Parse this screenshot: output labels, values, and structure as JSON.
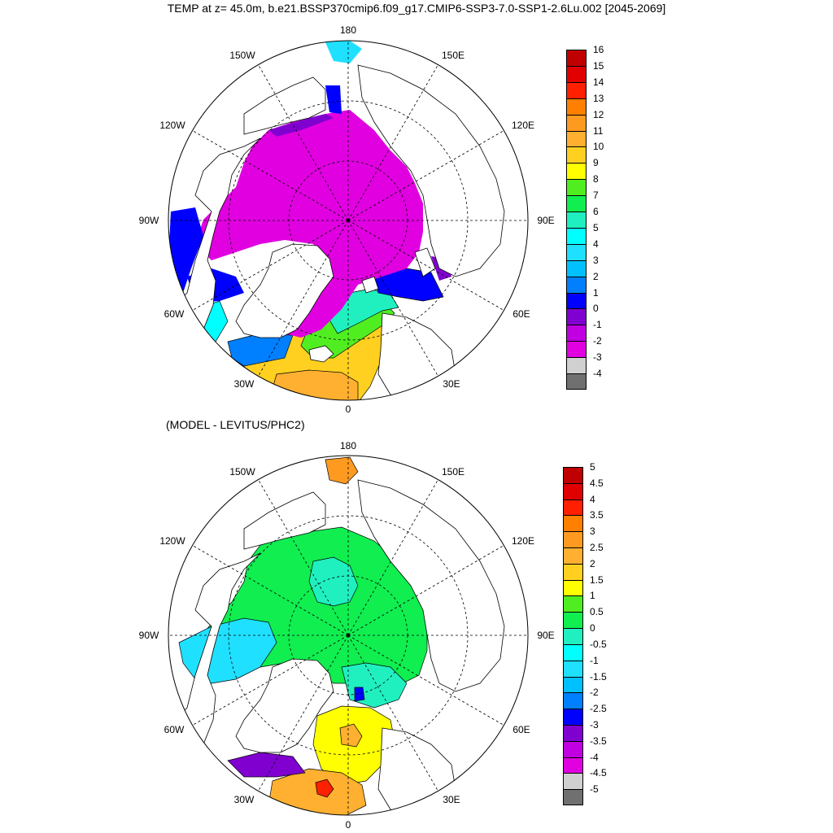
{
  "title": "TEMP at z=  45.0m, b.e21.BSSP370cmip6.f09_g17.CMIP6-SSP3-7.0-SSP1-2.6Lu.002 [2045-2069]",
  "subtitle": "(MODEL - LEVITUS/PHC2)",
  "longitude_labels": [
    "180",
    "150E",
    "120E",
    "90E",
    "60E",
    "30E",
    "0",
    "30W",
    "60W",
    "90W",
    "120W",
    "150W"
  ],
  "top_colorbar": {
    "labels": [
      "16",
      "15",
      "14",
      "13",
      "12",
      "11",
      "10",
      "9",
      "8",
      "7",
      "6",
      "5",
      "4",
      "3",
      "2",
      "1",
      "0",
      "-1",
      "-2",
      "-3",
      "-4"
    ],
    "colors": [
      "#c00000",
      "#e00000",
      "#ff2000",
      "#ff8000",
      "#ff9a20",
      "#ffb030",
      "#ffd020",
      "#ffff00",
      "#50ee20",
      "#10ee50",
      "#20f0c0",
      "#00ffff",
      "#20e0ff",
      "#00c0ff",
      "#0080ff",
      "#0000ff",
      "#8000d0",
      "#c000e0",
      "#e000e0",
      "#d0d0d0",
      "#707070"
    ]
  },
  "bottom_colorbar": {
    "labels": [
      "5",
      "4.5",
      "4",
      "3.5",
      "3",
      "2.5",
      "2",
      "1.5",
      "1",
      "0.5",
      "0",
      "-0.5",
      "-1",
      "-1.5",
      "-2",
      "-2.5",
      "-3",
      "-3.5",
      "-4",
      "-4.5",
      "-5"
    ],
    "colors": [
      "#c00000",
      "#e00000",
      "#ff2000",
      "#ff8000",
      "#ff9a20",
      "#ffb030",
      "#ffd020",
      "#ffff00",
      "#50ee20",
      "#10ee50",
      "#20f0c0",
      "#00ffff",
      "#20e0ff",
      "#00c0ff",
      "#0080ff",
      "#0000ff",
      "#8000d0",
      "#c000e0",
      "#e000e0",
      "#d0d0d0",
      "#707070"
    ]
  },
  "colors": {
    "land_outline": "#000000",
    "graticule": "#000000"
  }
}
